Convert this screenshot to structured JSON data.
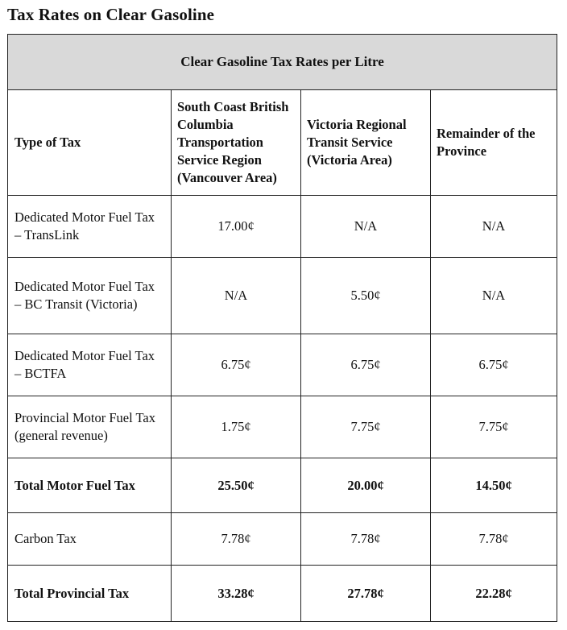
{
  "title": "Tax Rates on Clear Gasoline",
  "table": {
    "caption": "Clear Gasoline Tax Rates per Litre",
    "headers": [
      "Type of Tax",
      "South Coast British Columbia Transportation Service Region (Vancouver Area)",
      "Victoria Regional Transit Service (Victoria Area)",
      "Remainder of the Province"
    ],
    "rows": [
      {
        "label": "Dedicated Motor Fuel Tax – TransLink",
        "values": [
          "17.00¢",
          "N/A",
          "N/A"
        ]
      },
      {
        "label": "Dedicated Motor Fuel Tax – BC Transit (Victoria)",
        "values": [
          "N/A",
          "5.50¢",
          "N/A"
        ]
      },
      {
        "label": "Dedicated Motor Fuel Tax – BCTFA",
        "values": [
          "6.75¢",
          "6.75¢",
          "6.75¢"
        ]
      },
      {
        "label": "Provincial Motor Fuel Tax (general revenue)",
        "values": [
          "1.75¢",
          "7.75¢",
          "7.75¢"
        ]
      },
      {
        "label": "Total Motor Fuel Tax",
        "values": [
          "25.50¢",
          "20.00¢",
          "14.50¢"
        ]
      },
      {
        "label": "Carbon Tax",
        "values": [
          "7.78¢",
          "7.78¢",
          "7.78¢"
        ]
      },
      {
        "label": "Total Provincial Tax",
        "values": [
          "33.28¢",
          "27.78¢",
          "22.28¢"
        ]
      }
    ]
  }
}
